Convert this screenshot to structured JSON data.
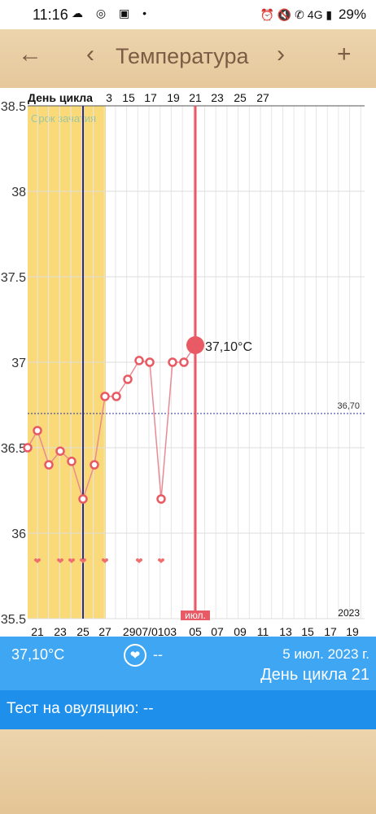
{
  "status": {
    "time": "11:16",
    "battery": "29%",
    "network": "4G"
  },
  "toolbar": {
    "title": "Температура",
    "back_icon": "←",
    "prev_icon": "‹",
    "next_icon": "›",
    "add_icon": "+"
  },
  "colors": {
    "toolbar_bg": "#e8cda3",
    "toolbar_fg": "#7a5d44",
    "fertile": "#fada78",
    "point": "#e85a64",
    "line": "#e98a93",
    "cover": "#2a2f8f",
    "info_bar": "#3ea6f2",
    "test_bar": "#1e90ec"
  },
  "chart_data": {
    "type": "line",
    "top_label": "День цикла",
    "top_ticks": [
      "3",
      "15",
      "17",
      "19",
      "21",
      "23",
      "25",
      "27"
    ],
    "bottom_ticks": [
      "21",
      "23",
      "25",
      "27",
      "2907/0103",
      "05",
      "07",
      "09",
      "11",
      "13",
      "15",
      "17",
      "19"
    ],
    "y_ticks": [
      "38.5",
      "38",
      "37.5",
      "37",
      "36.5",
      "36",
      "35.5"
    ],
    "ylim": [
      35.5,
      38.5
    ],
    "fertile_label": "Срок зачатия",
    "coverline": 36.7,
    "coverline_label": "36,70",
    "year_label": "2023",
    "month_label": "июл.",
    "selected_label": "37,10°C",
    "selected_value": 37.1,
    "series": [
      {
        "values": [
          36.5,
          36.6,
          36.4,
          36.48,
          36.42,
          36.2,
          36.4,
          36.8,
          36.8,
          36.9,
          37.01,
          37.0,
          36.2,
          37.0,
          37.0,
          37.1
        ]
      }
    ],
    "hearts": [
      "21",
      "23",
      "24",
      "25",
      "27",
      "30",
      "02"
    ]
  },
  "info": {
    "temp": "37,10°C",
    "intercourse": "--",
    "date": "5 июл. 2023 г.",
    "cycle_day": "День цикла 21",
    "ovulation_test": "Тест на овуляцию: --"
  }
}
